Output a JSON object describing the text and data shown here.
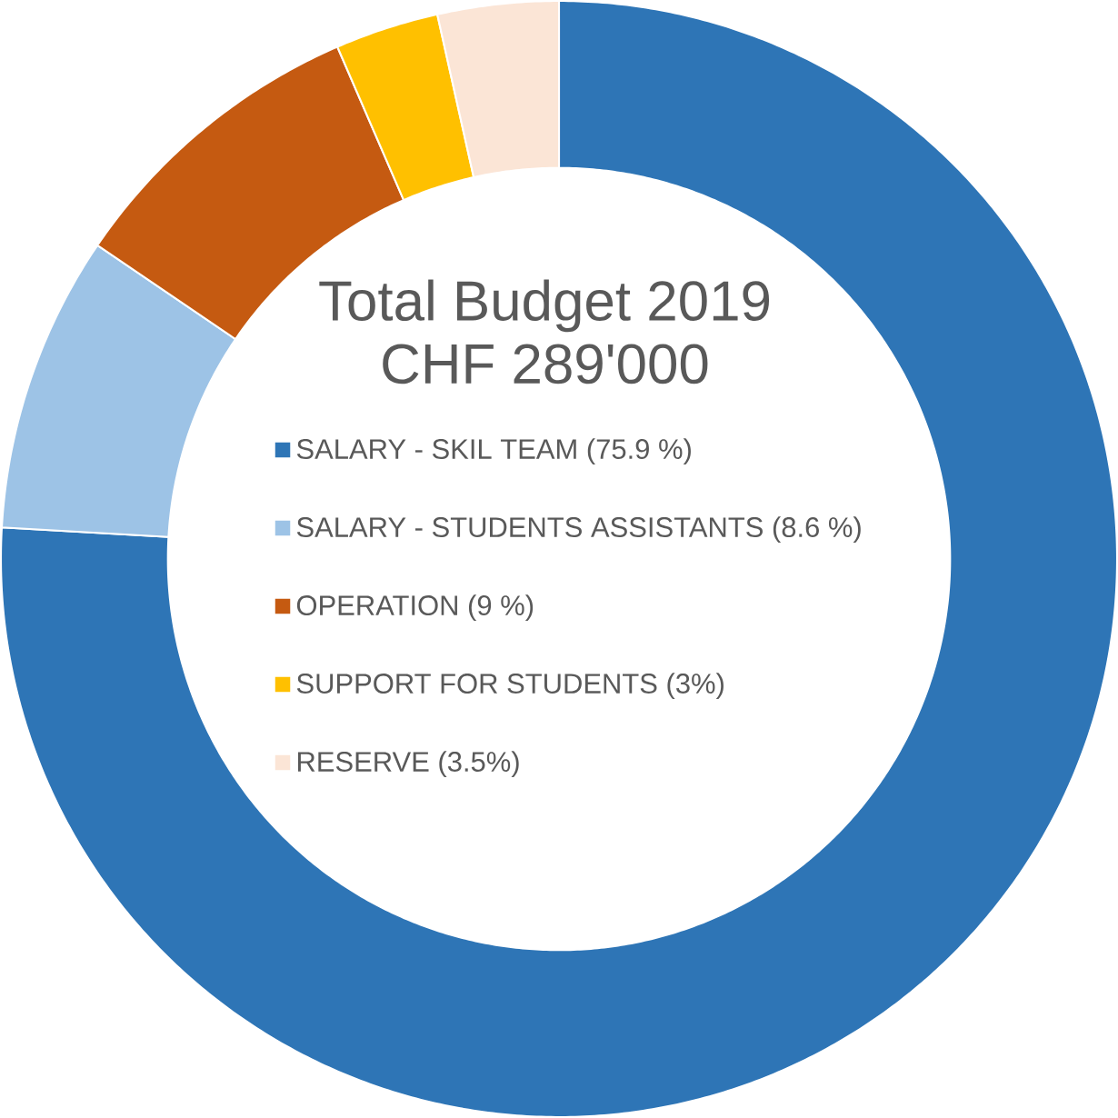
{
  "chart_data": {
    "type": "donut",
    "title": "Total Budget 2019",
    "subtitle": "CHF 289'000",
    "categories": [
      "SALARY - SKIL TEAM (75.9 %)",
      "SALARY - STUDENTS ASSISTANTS (8.6 %)",
      "OPERATION (9 %)",
      "SUPPORT FOR STUDENTS (3%)",
      "RESERVE (3.5%)"
    ],
    "values": [
      75.9,
      8.6,
      9,
      3,
      3.5
    ],
    "colors": [
      "#2e75b6",
      "#9dc3e6",
      "#c55a11",
      "#ffc000",
      "#fbe5d6"
    ],
    "legend": "center"
  }
}
